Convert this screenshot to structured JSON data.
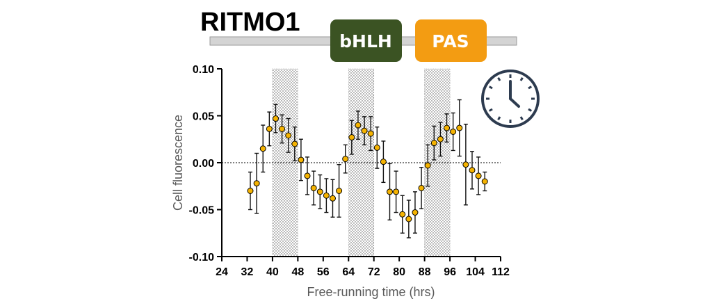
{
  "protein": {
    "name": "RITMO1",
    "domains": [
      {
        "label": "bHLH",
        "color": "#3b5323"
      },
      {
        "label": "PAS",
        "color": "#f39c12"
      }
    ]
  },
  "clock_icon": "clock-icon",
  "chart_data": {
    "type": "scatter",
    "xlabel": "Free-running time (hrs)",
    "ylabel": "Cell fluorescence",
    "xlim": [
      24,
      112
    ],
    "ylim": [
      -0.1,
      0.1
    ],
    "xticks": [
      24,
      32,
      40,
      48,
      56,
      64,
      72,
      80,
      88,
      96,
      104,
      112
    ],
    "yticks": [
      0.1,
      0.05,
      0.0,
      -0.05,
      -0.1
    ],
    "ytick_labels": [
      "0.10",
      "0.05",
      "0.00",
      "-0.05",
      "-0.10"
    ],
    "zero_line": "dotted",
    "grid": false,
    "marker_color": "#f5b301",
    "shaded_intervals": [
      [
        40,
        48
      ],
      [
        64,
        72
      ],
      [
        88,
        96
      ]
    ],
    "points": [
      {
        "x": 33,
        "y": -0.03,
        "err": 0.02
      },
      {
        "x": 35,
        "y": -0.022,
        "err": 0.032
      },
      {
        "x": 37,
        "y": 0.015,
        "err": 0.025
      },
      {
        "x": 39,
        "y": 0.036,
        "err": 0.018
      },
      {
        "x": 41,
        "y": 0.047,
        "err": 0.015
      },
      {
        "x": 43,
        "y": 0.036,
        "err": 0.015
      },
      {
        "x": 45,
        "y": 0.029,
        "err": 0.018
      },
      {
        "x": 47,
        "y": 0.02,
        "err": 0.018
      },
      {
        "x": 49,
        "y": 0.003,
        "err": 0.022
      },
      {
        "x": 51,
        "y": -0.014,
        "err": 0.02
      },
      {
        "x": 53,
        "y": -0.027,
        "err": 0.018
      },
      {
        "x": 55,
        "y": -0.031,
        "err": 0.018
      },
      {
        "x": 57,
        "y": -0.035,
        "err": 0.018
      },
      {
        "x": 59,
        "y": -0.038,
        "err": 0.02
      },
      {
        "x": 61,
        "y": -0.03,
        "err": 0.028
      },
      {
        "x": 63,
        "y": 0.004,
        "err": 0.015
      },
      {
        "x": 65,
        "y": 0.027,
        "err": 0.018
      },
      {
        "x": 67,
        "y": 0.04,
        "err": 0.015
      },
      {
        "x": 69,
        "y": 0.034,
        "err": 0.015
      },
      {
        "x": 71,
        "y": 0.031,
        "err": 0.018
      },
      {
        "x": 73,
        "y": 0.016,
        "err": 0.022
      },
      {
        "x": 75,
        "y": 0.001,
        "err": 0.022
      },
      {
        "x": 77,
        "y": -0.031,
        "err": 0.03
      },
      {
        "x": 79,
        "y": -0.031,
        "err": 0.022
      },
      {
        "x": 81,
        "y": -0.055,
        "err": 0.02
      },
      {
        "x": 83,
        "y": -0.06,
        "err": 0.02
      },
      {
        "x": 85,
        "y": -0.053,
        "err": 0.022
      },
      {
        "x": 87,
        "y": -0.027,
        "err": 0.022
      },
      {
        "x": 89,
        "y": -0.003,
        "err": 0.022
      },
      {
        "x": 91,
        "y": 0.021,
        "err": 0.018
      },
      {
        "x": 93,
        "y": 0.025,
        "err": 0.018
      },
      {
        "x": 95,
        "y": 0.037,
        "err": 0.015
      },
      {
        "x": 97,
        "y": 0.033,
        "err": 0.02
      },
      {
        "x": 99,
        "y": 0.037,
        "err": 0.03
      },
      {
        "x": 101,
        "y": -0.002,
        "err": 0.043
      },
      {
        "x": 103,
        "y": -0.008,
        "err": 0.02
      },
      {
        "x": 105,
        "y": -0.014,
        "err": 0.02
      },
      {
        "x": 107,
        "y": -0.02,
        "err": 0.01
      }
    ]
  }
}
